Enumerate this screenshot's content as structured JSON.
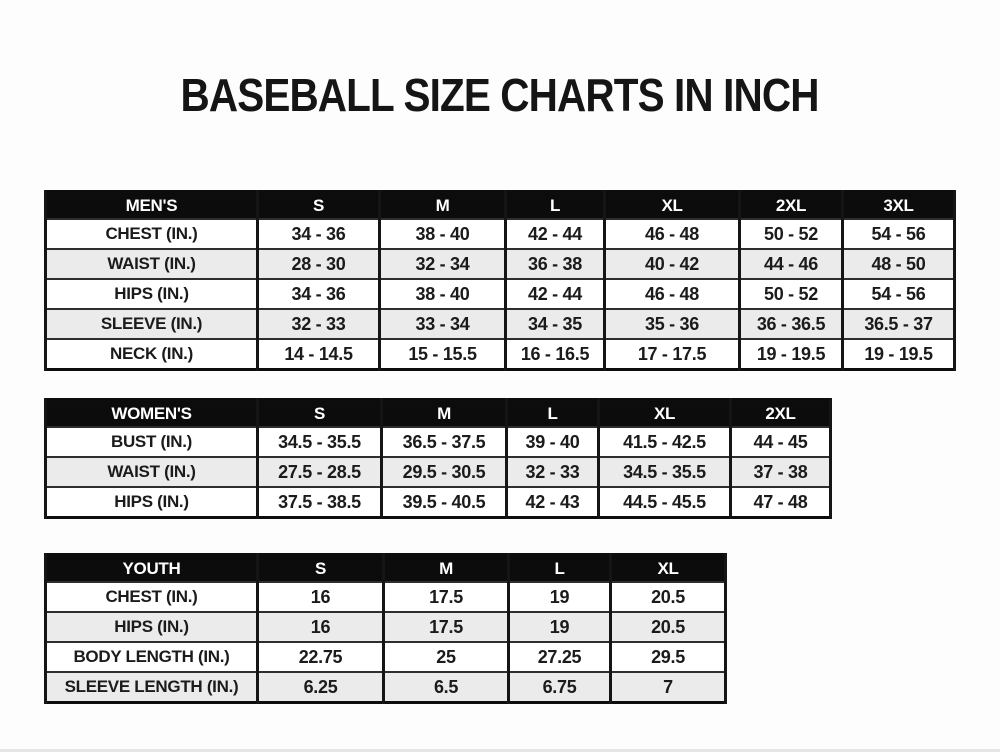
{
  "page": {
    "title": "BASEBALL SIZE CHARTS IN INCH"
  },
  "colors": {
    "page_bg": "#fdfdfd",
    "header_bg": "#0c0c0c",
    "header_text": "#ffffff",
    "row_alt_bg": "#ebebeb",
    "border": "#151515",
    "text": "#1b1b1b"
  },
  "chart_data": [
    {
      "type": "table",
      "title": "MEN'S",
      "columns": [
        "MEN'S",
        "S",
        "M",
        "L",
        "XL",
        "2XL",
        "3XL"
      ],
      "rows": [
        {
          "label": "CHEST (IN.)",
          "values": [
            "34 - 36",
            "38 - 40",
            "42 - 44",
            "46 - 48",
            "50 - 52",
            "54 - 56"
          ]
        },
        {
          "label": "WAIST (IN.)",
          "values": [
            "28 - 30",
            "32 - 34",
            "36 - 38",
            "40 - 42",
            "44 - 46",
            "48 - 50"
          ]
        },
        {
          "label": "HIPS (IN.)",
          "values": [
            "34 - 36",
            "38 - 40",
            "42 - 44",
            "46 - 48",
            "50 - 52",
            "54 - 56"
          ]
        },
        {
          "label": "SLEEVE (IN.)",
          "values": [
            "32 - 33",
            "33 - 34",
            "34 - 35",
            "35 - 36",
            "36 - 36.5",
            "36.5 - 37"
          ]
        },
        {
          "label": "NECK (IN.)",
          "values": [
            "14 - 14.5",
            "15 - 15.5",
            "16 - 16.5",
            "17 - 17.5",
            "19 - 19.5",
            "19 - 19.5"
          ]
        }
      ]
    },
    {
      "type": "table",
      "title": "WOMEN'S",
      "columns": [
        "WOMEN'S",
        "S",
        "M",
        "L",
        "XL",
        "2XL"
      ],
      "rows": [
        {
          "label": "BUST (IN.)",
          "values": [
            "34.5 - 35.5",
            "36.5 - 37.5",
            "39 - 40",
            "41.5 - 42.5",
            "44 - 45"
          ]
        },
        {
          "label": "WAIST (IN.)",
          "values": [
            "27.5 - 28.5",
            "29.5 - 30.5",
            "32 - 33",
            "34.5 - 35.5",
            "37 - 38"
          ]
        },
        {
          "label": "HIPS (IN.)",
          "values": [
            "37.5 - 38.5",
            "39.5 - 40.5",
            "42 - 43",
            "44.5 - 45.5",
            "47 - 48"
          ]
        }
      ]
    },
    {
      "type": "table",
      "title": "YOUTH",
      "columns": [
        "YOUTH",
        "S",
        "M",
        "L",
        "XL"
      ],
      "rows": [
        {
          "label": "CHEST (IN.)",
          "values": [
            "16",
            "17.5",
            "19",
            "20.5"
          ]
        },
        {
          "label": "HIPS (IN.)",
          "values": [
            "16",
            "17.5",
            "19",
            "20.5"
          ]
        },
        {
          "label": "BODY LENGTH (IN.)",
          "values": [
            "22.75",
            "25",
            "27.25",
            "29.5"
          ]
        },
        {
          "label": "SLEEVE LENGTH (IN.)",
          "values": [
            "6.25",
            "6.5",
            "6.75",
            "7"
          ]
        }
      ]
    }
  ]
}
